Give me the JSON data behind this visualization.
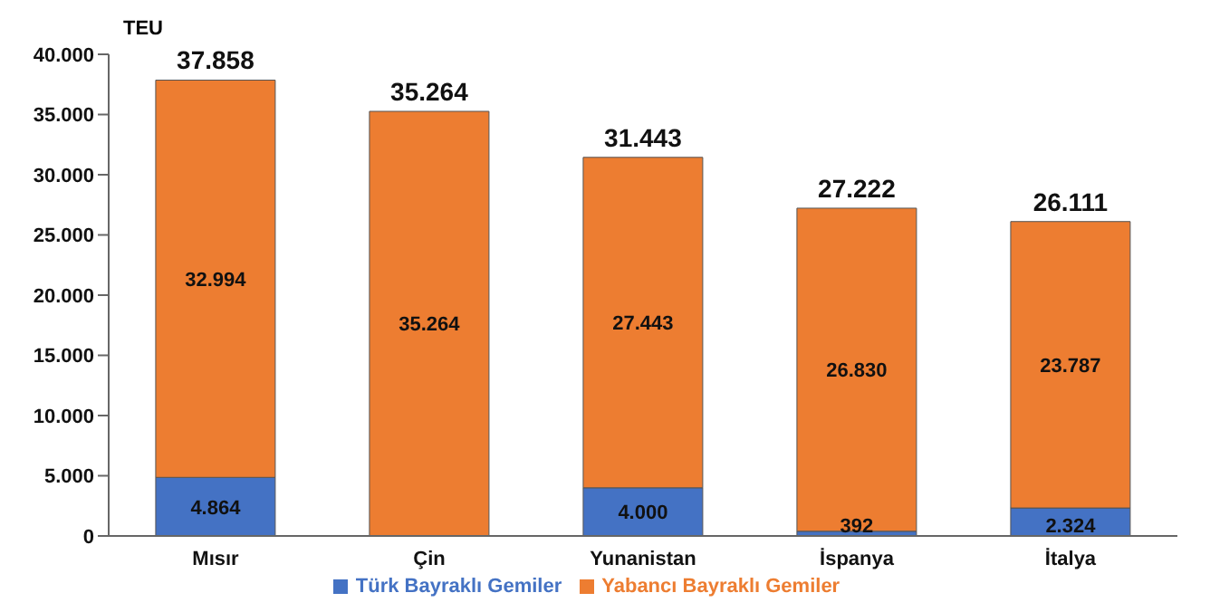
{
  "chart_data": {
    "type": "bar",
    "stacked": true,
    "ylabel": "TEU",
    "categories": [
      "Mısır",
      "Çin",
      "Yunanistan",
      "İspanya",
      "İtalya"
    ],
    "series": [
      {
        "name": "Türk Bayraklı Gemiler",
        "color": "#4472c4",
        "values": [
          4864,
          0,
          4000,
          392,
          2324
        ],
        "value_labels": [
          "4.864",
          null,
          "4.000",
          "392",
          "2.324"
        ]
      },
      {
        "name": "Yabancı Bayraklı Gemiler",
        "color": "#ed7d31",
        "values": [
          32994,
          35264,
          27443,
          26830,
          23787
        ],
        "value_labels": [
          "32.994",
          "35.264",
          "27.443",
          "26.830",
          "23.787"
        ]
      }
    ],
    "totals": [
      "37.858",
      "35.264",
      "31.443",
      "27.222",
      "26.111"
    ],
    "ylim": [
      0,
      40000
    ],
    "yticks": [
      {
        "value": 0,
        "label": "0"
      },
      {
        "value": 5000,
        "label": "5.000"
      },
      {
        "value": 10000,
        "label": "10.000"
      },
      {
        "value": 15000,
        "label": "15.000"
      },
      {
        "value": 20000,
        "label": "20.000"
      },
      {
        "value": 25000,
        "label": "25.000"
      },
      {
        "value": 30000,
        "label": "30.000"
      },
      {
        "value": 35000,
        "label": "35.000"
      },
      {
        "value": 40000,
        "label": "40.000"
      }
    ],
    "grid": false,
    "legend": "bottom"
  }
}
